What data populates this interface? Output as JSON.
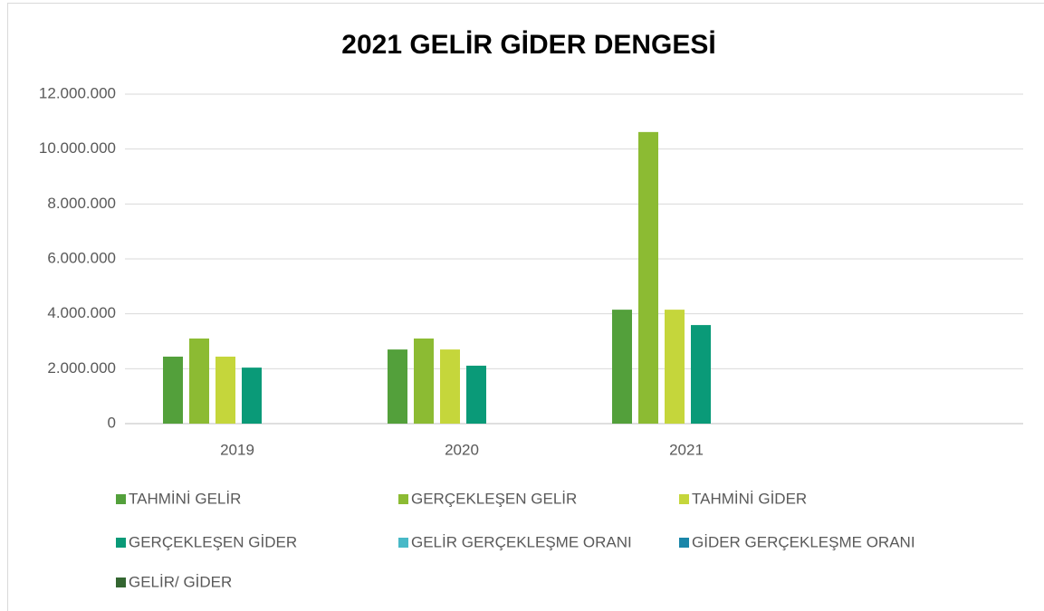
{
  "chart_data": {
    "type": "bar",
    "title": "2021 GELİR GİDER DENGESİ",
    "categories": [
      "2019",
      "2020",
      "2021",
      null
    ],
    "series": [
      {
        "name": "TAHMİNİ GELİR",
        "color": "#53a03b",
        "values": [
          2440000,
          2700000,
          4150000,
          null
        ]
      },
      {
        "name": "GERÇEKLEŞEN  GELİR",
        "color": "#8cbb33",
        "values": [
          3100000,
          3100000,
          10620000,
          null
        ]
      },
      {
        "name": "TAHMİNİ  GİDER",
        "color": "#c5d63b",
        "values": [
          2440000,
          2700000,
          4150000,
          null
        ]
      },
      {
        "name": "GERÇEKLEŞEN GİDER",
        "color": "#0a9a78",
        "values": [
          2040000,
          2110000,
          3590000,
          null
        ]
      },
      {
        "name": "GELİR GERÇEKLEŞME ORANI",
        "color": "#48b9c7",
        "values": [
          null,
          null,
          null,
          null
        ]
      },
      {
        "name": "GİDER GERÇEKLEŞME ORANI",
        "color": "#1a86a9",
        "values": [
          null,
          null,
          null,
          null
        ]
      },
      {
        "name": "GELİR/ GİDER",
        "color": "#346631",
        "values": [
          null,
          null,
          null,
          null
        ]
      }
    ],
    "ylim": [
      0,
      12000000
    ],
    "yticks": [
      0,
      {
        "value": 2000000,
        "label": "2.000.000"
      },
      {
        "value": 4000000,
        "label": "4.000.000"
      },
      {
        "value": 6000000,
        "label": "6.000.000"
      },
      {
        "value": 8000000,
        "label": "8.000.000"
      },
      {
        "value": 10000000,
        "label": "10.000.000"
      },
      {
        "value": 12000000,
        "label": "12.000.000"
      }
    ],
    "grid": true,
    "legend": "bottom"
  }
}
